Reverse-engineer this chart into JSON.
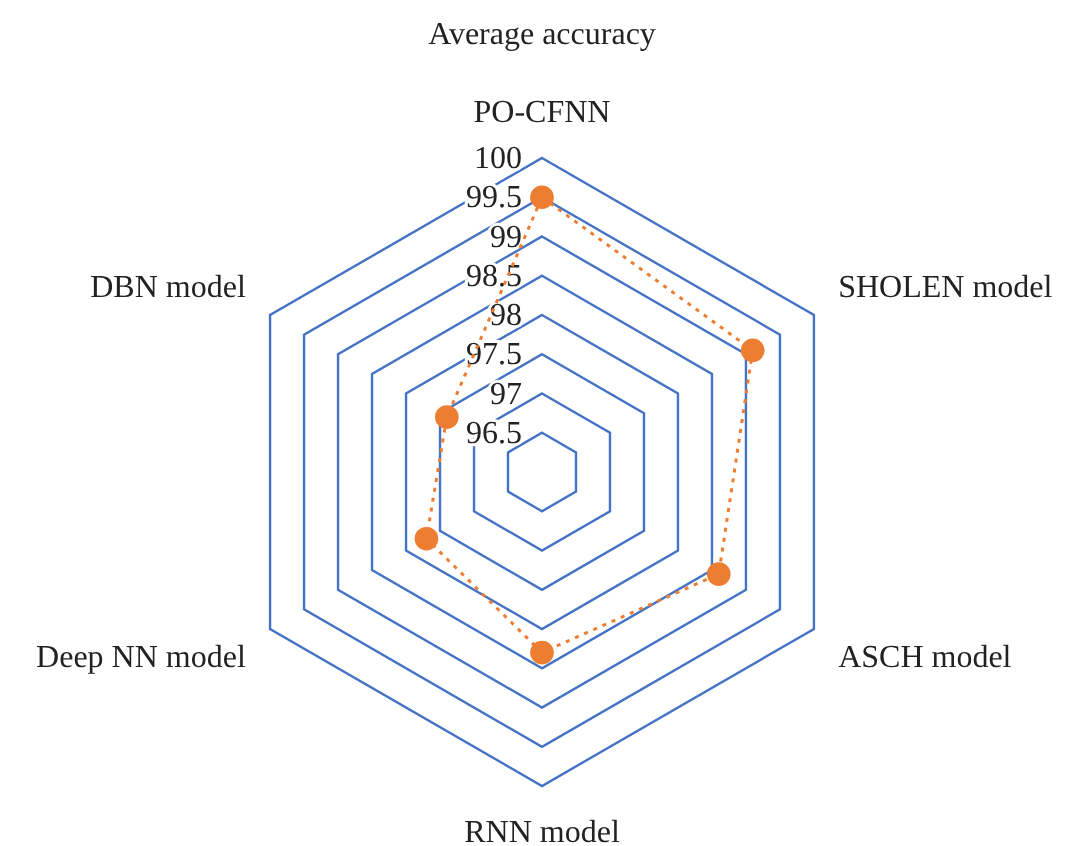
{
  "chart_data": {
    "type": "radar",
    "title": "Average accuracy",
    "categories": [
      "PO-CFNN",
      "SHOLEN model",
      "ASCH model",
      "RNN model",
      "Deep NN model",
      "DBN model"
    ],
    "ylim": [
      96,
      100
    ],
    "yticks": [
      96.5,
      97,
      97.5,
      98,
      98.5,
      99,
      99.5,
      100
    ],
    "grid": true,
    "marker": "circle",
    "line_style": "dotted",
    "series": [
      {
        "color": "#ed7d31",
        "values": [
          99.5,
          99.1,
          98.6,
          98.3,
          97.7,
          97.4
        ]
      }
    ]
  }
}
